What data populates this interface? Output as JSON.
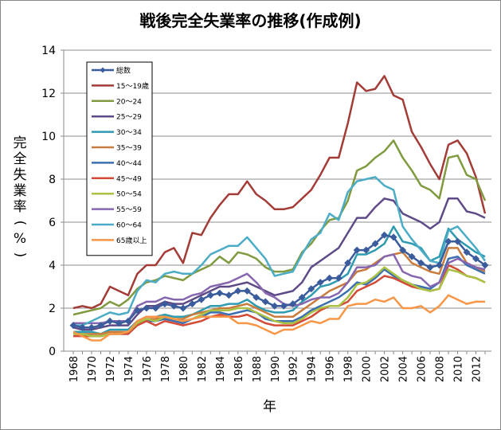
{
  "chart_data": {
    "type": "line",
    "title": "戦後完全失業率の推移(作成例)",
    "xlabel": "年",
    "ylabel": "完全失業率(%)",
    "ylim": [
      0,
      14
    ],
    "yticks": [
      "0",
      "2",
      "4",
      "6",
      "8",
      "10",
      "12",
      "14"
    ],
    "xticks": [
      "1968",
      "1970",
      "1972",
      "1974",
      "1976",
      "1978",
      "1980",
      "1982",
      "1984",
      "1986",
      "1988",
      "1990",
      "1992",
      "1994",
      "1996",
      "1998",
      "2000",
      "2002",
      "2004",
      "2006",
      "2008",
      "2010",
      "2012"
    ],
    "grid": true,
    "legend": "top-left",
    "x": [
      1968,
      1969,
      1970,
      1971,
      1972,
      1973,
      1974,
      1975,
      1976,
      1977,
      1978,
      1979,
      1980,
      1981,
      1982,
      1983,
      1984,
      1985,
      1986,
      1987,
      1988,
      1989,
      1990,
      1991,
      1992,
      1993,
      1994,
      1995,
      1996,
      1997,
      1998,
      1999,
      2000,
      2001,
      2002,
      2003,
      2004,
      2005,
      2006,
      2007,
      2008,
      2009,
      2010,
      2011,
      2012,
      2013
    ],
    "series": [
      {
        "name": "総数",
        "color": "#3B5C9C",
        "marker": "diamond",
        "width": 2.5,
        "values": [
          1.2,
          1.1,
          1.1,
          1.2,
          1.4,
          1.3,
          1.4,
          1.9,
          2.0,
          2.0,
          2.2,
          2.1,
          2.0,
          2.2,
          2.4,
          2.6,
          2.7,
          2.6,
          2.8,
          2.8,
          2.5,
          2.3,
          2.1,
          2.1,
          2.2,
          2.5,
          2.9,
          3.2,
          3.4,
          3.4,
          4.1,
          4.7,
          4.7,
          5.0,
          5.4,
          5.3,
          4.7,
          4.4,
          4.1,
          3.9,
          4.0,
          5.1,
          5.1,
          4.6,
          4.3,
          4.0
        ]
      },
      {
        "name": "15～19歳",
        "color": "#A33B37",
        "width": 2.5,
        "values": [
          2.0,
          2.1,
          2.0,
          2.2,
          3.0,
          2.8,
          2.6,
          3.6,
          4.0,
          4.0,
          4.6,
          4.8,
          4.1,
          5.5,
          5.4,
          6.2,
          6.8,
          7.3,
          7.3,
          7.9,
          7.3,
          7.0,
          6.6,
          6.6,
          6.7,
          7.1,
          7.5,
          8.2,
          9.0,
          9.0,
          10.6,
          12.5,
          12.1,
          12.2,
          12.8,
          11.9,
          11.7,
          10.2,
          9.5,
          8.7,
          8.0,
          9.6,
          9.8,
          9.2,
          8.1,
          6.4
        ]
      },
      {
        "name": "20～24",
        "color": "#7F9A3F",
        "width": 2.5,
        "values": [
          1.7,
          1.8,
          1.9,
          2.0,
          2.3,
          2.1,
          2.4,
          2.9,
          3.2,
          3.3,
          3.5,
          3.4,
          3.3,
          3.6,
          3.8,
          4.0,
          4.4,
          4.1,
          4.6,
          4.5,
          4.3,
          3.9,
          3.7,
          3.7,
          3.8,
          4.6,
          5.0,
          5.6,
          6.1,
          6.2,
          7.0,
          8.4,
          8.6,
          9.0,
          9.3,
          9.8,
          9.0,
          8.4,
          7.7,
          7.5,
          7.1,
          9.0,
          9.1,
          8.2,
          8.0,
          7.0
        ]
      },
      {
        "name": "25～29",
        "color": "#5E4A86",
        "width": 2.5,
        "values": [
          1.1,
          1.0,
          1.0,
          1.1,
          1.2,
          1.2,
          1.2,
          1.7,
          2.1,
          2.1,
          2.3,
          2.2,
          2.2,
          2.4,
          2.6,
          2.8,
          3.0,
          3.0,
          3.1,
          3.2,
          3.0,
          2.8,
          2.6,
          2.7,
          2.8,
          3.2,
          3.9,
          4.2,
          4.5,
          4.8,
          5.5,
          6.2,
          6.2,
          6.7,
          7.1,
          7.0,
          6.4,
          6.2,
          6.0,
          5.7,
          6.0,
          7.1,
          7.1,
          6.5,
          6.4,
          6.2
        ]
      },
      {
        "name": "30～34",
        "color": "#2E9BB0",
        "width": 2.5,
        "values": [
          0.9,
          0.9,
          0.9,
          0.8,
          1.0,
          1.0,
          1.0,
          1.4,
          1.6,
          1.6,
          1.7,
          1.6,
          1.6,
          1.7,
          1.9,
          2.1,
          2.1,
          2.2,
          2.2,
          2.4,
          2.1,
          1.9,
          1.8,
          1.8,
          1.9,
          2.3,
          2.6,
          3.0,
          3.1,
          3.3,
          3.6,
          4.5,
          4.5,
          4.7,
          5.0,
          5.8,
          5.1,
          5.0,
          4.8,
          4.2,
          4.4,
          5.7,
          5.2,
          4.9,
          4.6,
          4.4
        ]
      },
      {
        "name": "35～39",
        "color": "#C97C3C",
        "width": 2.5,
        "values": [
          0.8,
          0.8,
          0.8,
          0.8,
          0.9,
          0.9,
          0.9,
          1.3,
          1.5,
          1.5,
          1.6,
          1.5,
          1.5,
          1.7,
          1.8,
          1.9,
          2.0,
          2.0,
          2.1,
          2.2,
          2.0,
          1.8,
          1.6,
          1.6,
          1.6,
          1.9,
          2.2,
          2.5,
          2.8,
          3.0,
          3.2,
          3.7,
          3.8,
          4.1,
          4.4,
          4.5,
          4.6,
          4.1,
          3.9,
          3.7,
          3.6,
          4.8,
          4.8,
          4.1,
          3.9,
          3.7
        ]
      },
      {
        "name": "40～44",
        "color": "#3B6FB0",
        "width": 2.5,
        "values": [
          0.8,
          0.8,
          0.7,
          0.7,
          0.8,
          0.8,
          0.8,
          1.3,
          1.4,
          1.4,
          1.5,
          1.4,
          1.3,
          1.5,
          1.6,
          1.8,
          1.8,
          1.7,
          1.8,
          1.9,
          1.8,
          1.5,
          1.4,
          1.4,
          1.4,
          1.6,
          1.9,
          2.1,
          2.3,
          2.5,
          2.8,
          3.2,
          3.1,
          3.4,
          3.8,
          3.5,
          3.3,
          3.1,
          3.0,
          2.9,
          3.2,
          4.3,
          4.4,
          4.0,
          3.8,
          3.6
        ]
      },
      {
        "name": "45～49",
        "color": "#D34A36",
        "width": 2.5,
        "values": [
          0.7,
          0.7,
          0.7,
          0.7,
          0.8,
          0.8,
          0.8,
          1.2,
          1.4,
          1.2,
          1.4,
          1.3,
          1.2,
          1.3,
          1.4,
          1.6,
          1.7,
          1.6,
          1.6,
          1.7,
          1.5,
          1.3,
          1.2,
          1.2,
          1.2,
          1.4,
          1.6,
          1.9,
          2.1,
          2.1,
          2.3,
          2.8,
          3.0,
          3.2,
          3.5,
          3.4,
          3.2,
          3.0,
          2.9,
          2.8,
          2.9,
          4.0,
          3.8,
          3.5,
          3.4,
          3.2
        ]
      },
      {
        "name": "50～54",
        "color": "#A9C243",
        "width": 2.5,
        "values": [
          0.8,
          0.8,
          0.7,
          0.7,
          0.8,
          0.8,
          0.9,
          1.3,
          1.5,
          1.4,
          1.6,
          1.5,
          1.4,
          1.5,
          1.7,
          1.9,
          1.9,
          1.9,
          2.0,
          2.0,
          1.8,
          1.6,
          1.4,
          1.3,
          1.3,
          1.5,
          1.8,
          2.0,
          2.1,
          2.1,
          2.5,
          3.1,
          3.2,
          3.5,
          3.9,
          3.6,
          3.3,
          3.1,
          2.9,
          2.8,
          2.9,
          3.8,
          3.7,
          3.5,
          3.4,
          3.2
        ]
      },
      {
        "name": "55～59",
        "color": "#8766B0",
        "width": 2.5,
        "values": [
          1.3,
          1.3,
          1.3,
          1.3,
          1.4,
          1.4,
          1.4,
          2.1,
          2.3,
          2.3,
          2.5,
          2.4,
          2.4,
          2.6,
          2.7,
          3.0,
          3.1,
          3.2,
          3.4,
          3.6,
          3.2,
          2.7,
          2.5,
          2.2,
          2.1,
          2.2,
          2.4,
          2.5,
          2.5,
          2.7,
          3.2,
          3.9,
          3.9,
          4.0,
          4.4,
          4.5,
          3.7,
          3.5,
          3.4,
          3.0,
          3.2,
          4.1,
          4.3,
          4.1,
          3.9,
          3.8
        ]
      },
      {
        "name": "60～64",
        "color": "#4BACC6",
        "width": 2.5,
        "values": [
          1.2,
          1.2,
          1.4,
          1.6,
          1.8,
          1.7,
          1.8,
          2.8,
          3.3,
          3.2,
          3.6,
          3.7,
          3.6,
          3.6,
          4.0,
          4.5,
          4.7,
          4.9,
          4.9,
          5.3,
          4.8,
          4.3,
          3.5,
          3.6,
          3.7,
          4.5,
          5.2,
          5.5,
          6.4,
          6.1,
          7.4,
          7.9,
          8.0,
          8.1,
          7.7,
          7.5,
          5.8,
          5.2,
          4.7,
          4.2,
          4.1,
          5.6,
          5.8,
          5.3,
          4.8,
          4.2
        ]
      },
      {
        "name": "65歳以上",
        "color": "#F79646",
        "width": 2.5,
        "values": [
          0.9,
          0.7,
          0.5,
          0.5,
          0.8,
          0.8,
          0.9,
          1.4,
          1.6,
          1.6,
          1.6,
          1.5,
          1.4,
          1.5,
          1.6,
          1.6,
          1.6,
          1.6,
          1.3,
          1.3,
          1.2,
          1.0,
          0.8,
          1.0,
          1.0,
          1.2,
          1.4,
          1.3,
          1.5,
          1.5,
          2.1,
          2.2,
          2.2,
          2.4,
          2.3,
          2.5,
          2.0,
          2.0,
          2.1,
          1.8,
          2.1,
          2.6,
          2.4,
          2.2,
          2.3,
          2.3
        ]
      }
    ]
  }
}
